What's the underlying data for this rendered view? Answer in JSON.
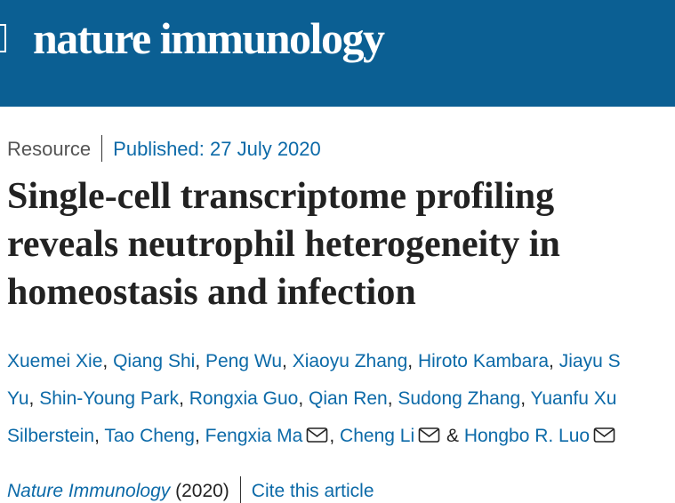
{
  "header": {
    "logo": "nature immunology"
  },
  "article": {
    "type": "Resource",
    "published": "Published: 27 July 2020",
    "title_lines": [
      "Single-cell transcriptome profiling",
      "reveals neutrophil heterogeneity in",
      "homeostasis and infection"
    ],
    "authors": {
      "separator": ",",
      "last_separator": "&",
      "rows": [
        [
          {
            "name": "Xuemei Xie",
            "email": false
          },
          {
            "name": "Qiang Shi",
            "email": false
          },
          {
            "name": "Peng Wu",
            "email": false
          },
          {
            "name": "Xiaoyu Zhang",
            "email": false
          },
          {
            "name": "Hiroto Kambara",
            "email": false
          },
          {
            "name": "Jiayu S",
            "email": false
          }
        ],
        [
          {
            "name": "Yu",
            "email": false
          },
          {
            "name": "Shin-Young Park",
            "email": false
          },
          {
            "name": "Rongxia Guo",
            "email": false
          },
          {
            "name": "Qian Ren",
            "email": false
          },
          {
            "name": "Sudong Zhang",
            "email": false
          },
          {
            "name": "Yuanfu Xu",
            "email": false
          }
        ],
        [
          {
            "name": "Silberstein",
            "email": false
          },
          {
            "name": "Tao Cheng",
            "email": false
          },
          {
            "name": "Fengxia Ma",
            "email": true
          },
          {
            "name": "Cheng Li",
            "email": true
          },
          {
            "name": "Hongbo R. Luo",
            "email": true
          }
        ]
      ]
    },
    "citation": {
      "journal": "Nature Immunology",
      "year": "(2020)",
      "cite_link": "Cite this article"
    }
  }
}
